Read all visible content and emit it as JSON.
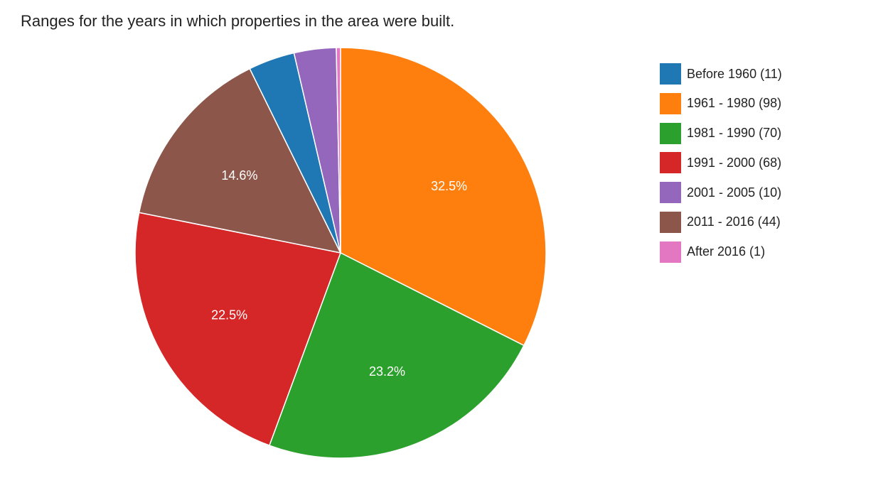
{
  "chart_data": {
    "type": "pie",
    "title": "Ranges for the years in which properties in the area were built.",
    "legend_position": "right",
    "start_angle_deg": 0,
    "slices": [
      {
        "label": "1961 - 1980",
        "legend": "1961 - 1980 (98)",
        "value": 98,
        "percent_label": "32.5%",
        "color": "#ff7f0e"
      },
      {
        "label": "1981 - 1990",
        "legend": "1981 - 1990 (70)",
        "value": 70,
        "percent_label": "23.2%",
        "color": "#2ca02c"
      },
      {
        "label": "1991 - 2000",
        "legend": "1991 - 2000 (68)",
        "value": 68,
        "percent_label": "22.5%",
        "color": "#d62728"
      },
      {
        "label": "2011 - 2016",
        "legend": "2011 - 2016 (44)",
        "value": 44,
        "percent_label": "14.6%",
        "color": "#8c564b"
      },
      {
        "label": "Before 1960",
        "legend": "Before 1960 (11)",
        "value": 11,
        "percent_label": "",
        "color": "#1f77b4"
      },
      {
        "label": "2001 - 2005",
        "legend": "2001 - 2005 (10)",
        "value": 10,
        "percent_label": "",
        "color": "#9467bd"
      },
      {
        "label": "After 2016",
        "legend": "After 2016 (1)",
        "value": 1,
        "percent_label": "",
        "color": "#e377c2"
      }
    ],
    "legend_order": [
      "Before 1960",
      "1961 - 1980",
      "1981 - 1990",
      "1991 - 2000",
      "2001 - 2005",
      "2011 - 2016",
      "After 2016"
    ]
  }
}
